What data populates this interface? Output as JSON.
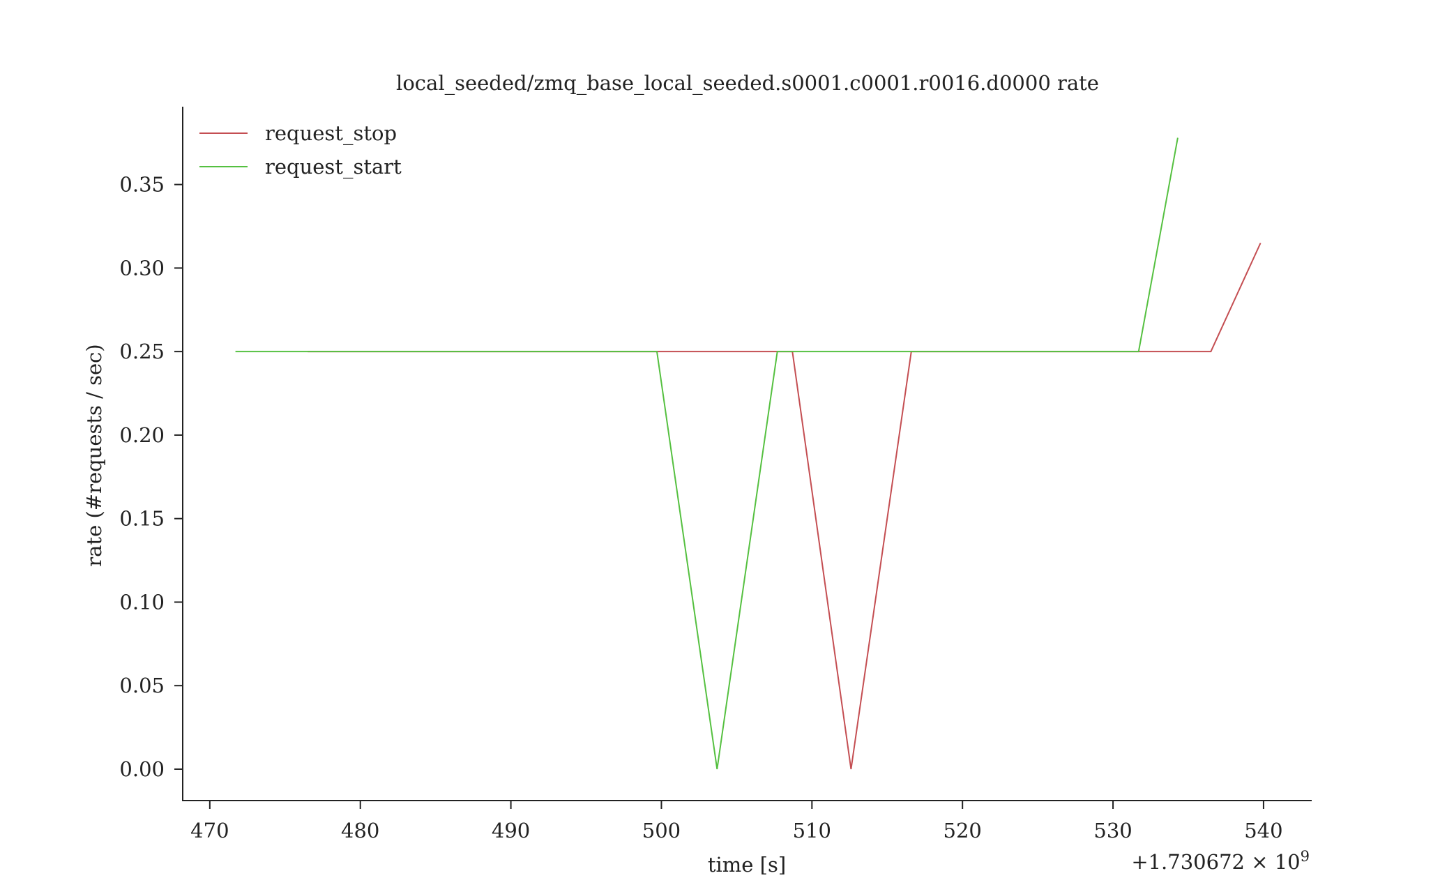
{
  "chart_data": {
    "type": "line",
    "title": "local_seeded/zmq_base_local_seeded.s0001.c0001.r0016.d0000 rate",
    "xlabel": "time [s]",
    "ylabel": "rate (#requests / sec)",
    "x_offset_label": "+1.730672 × 10",
    "x_offset_exponent": "9",
    "xlim": [
      468.2,
      543.2
    ],
    "ylim": [
      -0.0188,
      0.3966
    ],
    "xticks": [
      470,
      480,
      490,
      500,
      510,
      520,
      530,
      540
    ],
    "xtick_labels": [
      "470",
      "480",
      "490",
      "500",
      "510",
      "520",
      "530",
      "540"
    ],
    "yticks": [
      0.0,
      0.05,
      0.1,
      0.15,
      0.2,
      0.25,
      0.3,
      0.35
    ],
    "ytick_labels": [
      "0.00",
      "0.05",
      "0.10",
      "0.15",
      "0.20",
      "0.25",
      "0.30",
      "0.35"
    ],
    "grid": false,
    "legend_position": "top-left",
    "series": [
      {
        "name": "request_stop",
        "color": "#c44e52",
        "x": [
          476.5,
          508.7,
          512.6,
          516.6,
          536.5,
          539.8
        ],
        "y": [
          0.25,
          0.25,
          0.0,
          0.25,
          0.25,
          0.315
        ]
      },
      {
        "name": "request_start",
        "color": "#55c040",
        "x": [
          471.7,
          499.7,
          503.7,
          507.7,
          531.7,
          534.3
        ],
        "y": [
          0.25,
          0.25,
          0.0,
          0.25,
          0.25,
          0.378
        ]
      }
    ]
  }
}
